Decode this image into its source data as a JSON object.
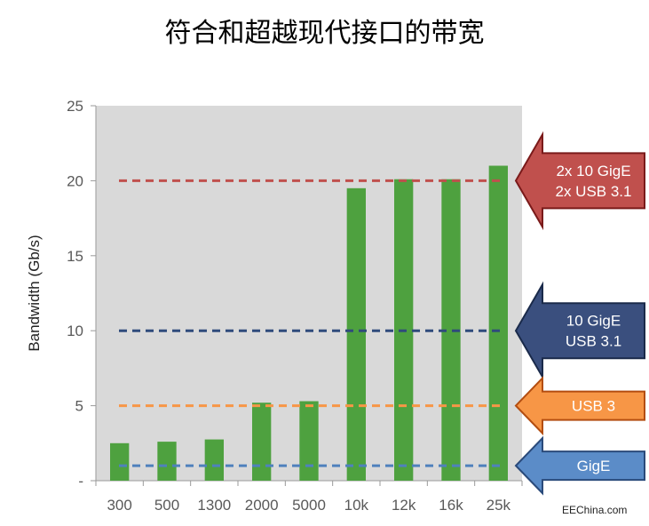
{
  "chart_data": {
    "type": "bar",
    "title": "符合和超越现代接口的带宽",
    "xlabel": "",
    "ylabel": "Bandwidth (Gb/s)",
    "ylim": [
      0,
      25
    ],
    "yticks": [
      "-",
      "5",
      "10",
      "15",
      "20",
      "25"
    ],
    "ytick_values": [
      0,
      5,
      10,
      15,
      20,
      25
    ],
    "categories": [
      "300",
      "500",
      "1300",
      "2000",
      "5000",
      "10k",
      "12k",
      "16k",
      "25k"
    ],
    "values": [
      2.5,
      2.6,
      2.75,
      5.2,
      5.3,
      19.5,
      20.1,
      20.1,
      21.0
    ],
    "bar_color": "#4ea13f",
    "plot_background": "#d9d9d9",
    "grid": false,
    "reference_lines": [
      {
        "value": 20,
        "color": "#c0504d",
        "label_lines": [
          "2x 10 GigE",
          "2x USB 3.1"
        ],
        "arrow_fill": "#c0504d",
        "arrow_stroke": "#7a1a1a"
      },
      {
        "value": 10,
        "color": "#2f4b7c",
        "label_lines": [
          "10 GigE",
          "USB 3.1"
        ],
        "arrow_fill": "#3a4f7e",
        "arrow_stroke": "#1a2a4a"
      },
      {
        "value": 5,
        "color": "#f79646",
        "label_lines": [
          "USB 3"
        ],
        "arrow_fill": "#f79646",
        "arrow_stroke": "#b34d10"
      },
      {
        "value": 1,
        "color": "#4f81bd",
        "label_lines": [
          "GigE"
        ],
        "arrow_fill": "#5b8cc8",
        "arrow_stroke": "#2a4a7a"
      }
    ]
  },
  "watermark": "EEChina.com"
}
